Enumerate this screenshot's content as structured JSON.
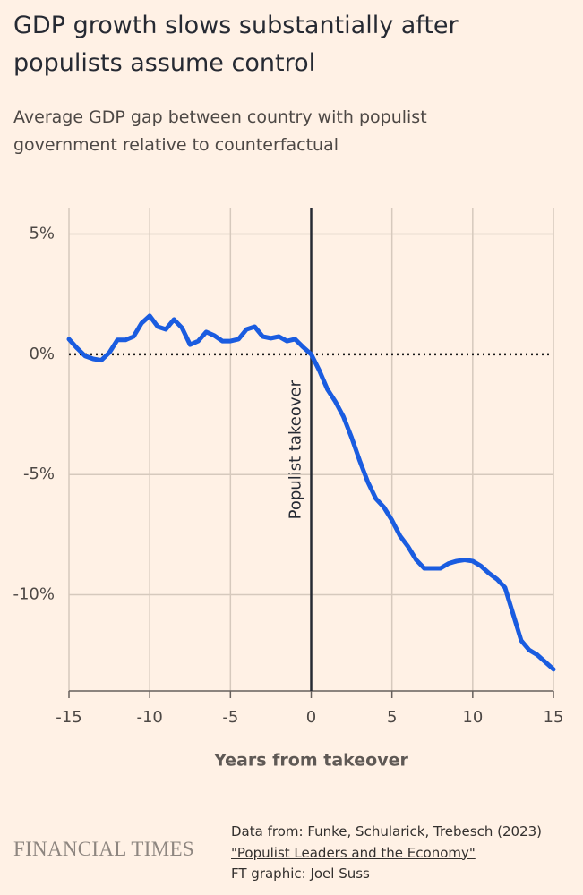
{
  "chart_data": {
    "type": "line",
    "title": "GDP growth slows substantially after populists assume control",
    "subtitle": "Average GDP gap between country with populist government relative to counterfactual",
    "xlabel": "Years from takeover",
    "x": [
      -15,
      -14.5,
      -14,
      -13.5,
      -13,
      -12.5,
      -12,
      -11.5,
      -11,
      -10.5,
      -10,
      -9.5,
      -9,
      -8.5,
      -8,
      -7.5,
      -7,
      -6.5,
      -6,
      -5.5,
      -5,
      -4.5,
      -4,
      -3.5,
      -3,
      -2.5,
      -2,
      -1.5,
      -1,
      -0.5,
      0,
      0.5,
      1,
      1.5,
      2,
      2.5,
      3,
      3.5,
      4,
      4.5,
      5,
      5.5,
      6,
      6.5,
      7,
      7.5,
      8,
      8.5,
      9,
      9.5,
      10,
      10.5,
      11,
      11.5,
      12,
      12.5,
      13,
      13.5,
      14,
      14.5,
      15
    ],
    "values": [
      0.63,
      0.26,
      -0.07,
      -0.19,
      -0.25,
      0.07,
      0.6,
      0.6,
      0.74,
      1.3,
      1.6,
      1.15,
      1.04,
      1.45,
      1.1,
      0.4,
      0.55,
      0.93,
      0.78,
      0.55,
      0.55,
      0.63,
      1.04,
      1.15,
      0.74,
      0.67,
      0.74,
      0.55,
      0.63,
      0.3,
      0,
      -0.67,
      -1.45,
      -1.97,
      -2.6,
      -3.46,
      -4.42,
      -5.3,
      -6.0,
      -6.36,
      -6.9,
      -7.55,
      -8.0,
      -8.55,
      -8.9,
      -8.9,
      -8.9,
      -8.7,
      -8.6,
      -8.55,
      -8.6,
      -8.8,
      -9.1,
      -9.35,
      -9.7,
      -10.8,
      -11.9,
      -12.3,
      -12.5,
      -12.8,
      -13.1
    ],
    "color": "#1a5ce0",
    "xlim": [
      -15,
      15
    ],
    "xticks": [
      -15,
      -10,
      -5,
      0,
      5,
      10,
      15
    ],
    "ylim": [
      -14,
      6.1
    ],
    "yticks": [
      {
        "value": 5,
        "label": "5%"
      },
      {
        "value": 0,
        "label": "0%"
      },
      {
        "value": -5,
        "label": "-5%"
      },
      {
        "value": -10,
        "label": "-10%"
      }
    ],
    "grid": true,
    "annotations": [
      {
        "x": 0,
        "text": "Populist takeover"
      }
    ],
    "source": [
      "Data from: Funke, Schularick, Trebesch (2023)",
      "\"Populist Leaders and the Economy\"",
      "FT graphic: Joel Suss"
    ],
    "brand": "FINANCIAL TIMES"
  }
}
